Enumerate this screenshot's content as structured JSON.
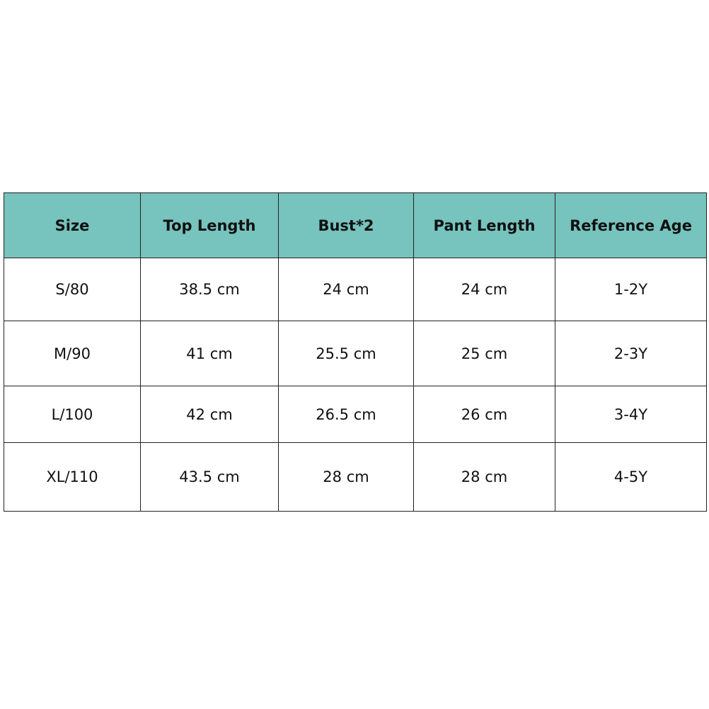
{
  "table": {
    "headers": [
      "Size",
      "Top Length",
      "Bust*2",
      "Pant Length",
      "Reference Age"
    ],
    "header_color": "#77c3be",
    "rows": [
      [
        "S/80",
        "38.5 cm",
        "24 cm",
        "24 cm",
        "1-2Y"
      ],
      [
        "M/90",
        "41 cm",
        "25.5 cm",
        "25 cm",
        "2-3Y"
      ],
      [
        "L/100",
        "42 cm",
        "26.5 cm",
        "26 cm",
        "3-4Y"
      ],
      [
        "XL/110",
        "43.5 cm",
        "28 cm",
        "28 cm",
        "4-5Y"
      ]
    ]
  }
}
